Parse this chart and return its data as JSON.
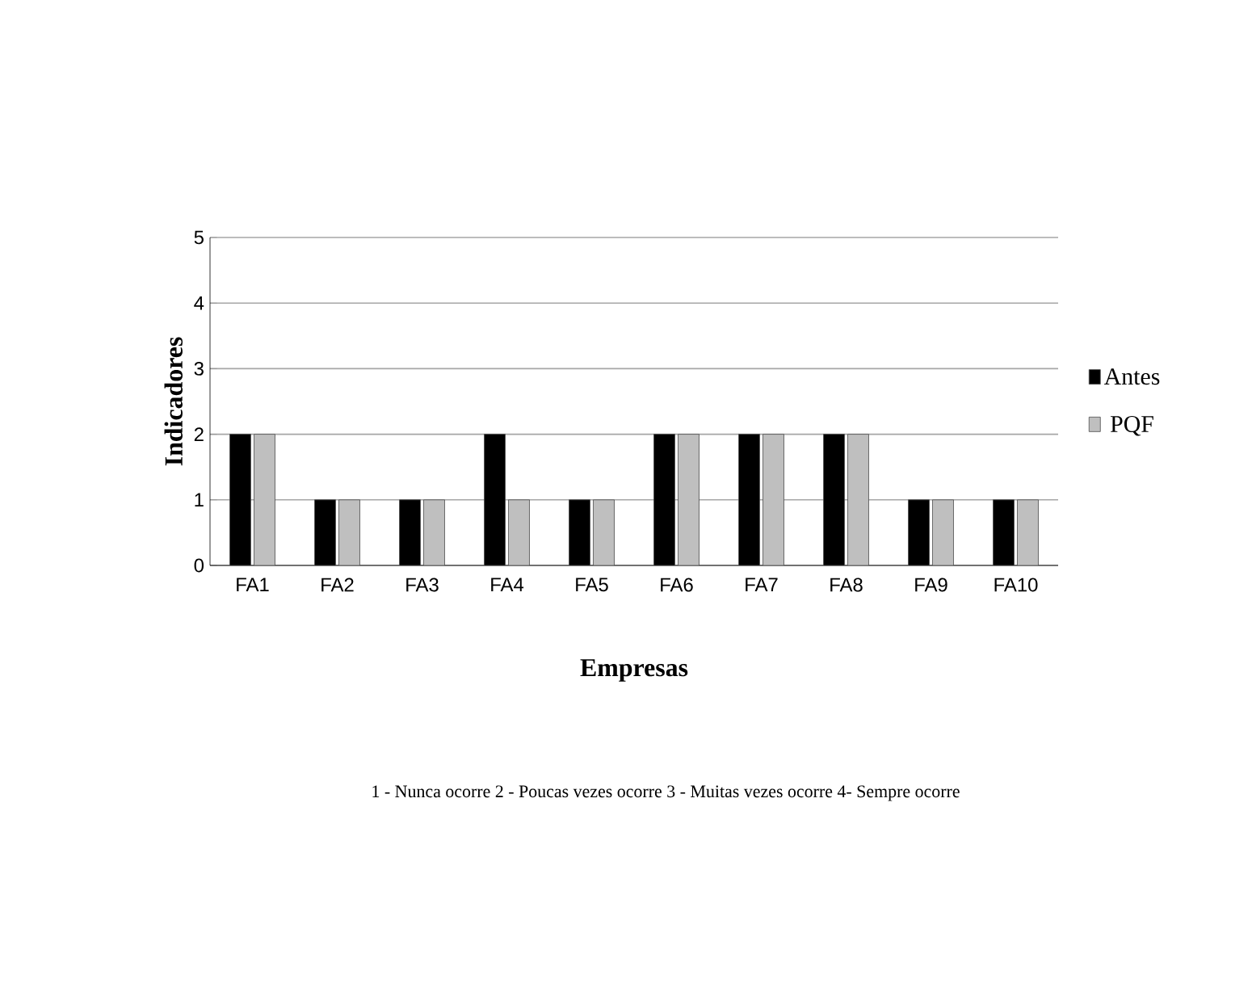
{
  "chart_data": {
    "type": "bar",
    "xlabel": "Empresas",
    "ylabel": "Indicadores",
    "categories": [
      "FA1",
      "FA2",
      "FA3",
      "FA4",
      "FA5",
      "FA6",
      "FA7",
      "FA8",
      "FA9",
      "FA10"
    ],
    "series": [
      {
        "name": "Antes",
        "color": "#000000",
        "values": [
          2,
          1,
          1,
          2,
          1,
          2,
          2,
          2,
          1,
          1
        ]
      },
      {
        "name": "PQF",
        "color": "#bfbfbf",
        "values": [
          2,
          1,
          1,
          1,
          1,
          2,
          2,
          2,
          1,
          1
        ]
      }
    ],
    "ylim": [
      0,
      5
    ],
    "yticks": [
      0,
      1,
      2,
      3,
      4,
      5
    ],
    "grid": "y",
    "legend": "right",
    "annotations": [
      "1 - Nunca ocorre 2 - Poucas vezes ocorre 3 - Muitas vezes ocorre 4- Sempre ocorre"
    ]
  }
}
